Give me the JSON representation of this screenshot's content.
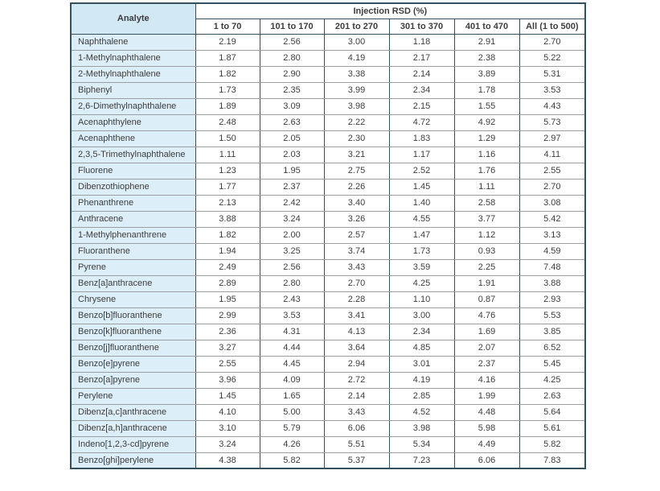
{
  "table": {
    "span_header": "Injection RSD (%)",
    "analyte_header": "Analyte",
    "range_headers": [
      "1 to 70",
      "101 to 170",
      "201 to 270",
      "301 to 370",
      "401 to 470",
      "All (1 to 500)"
    ],
    "rows": [
      {
        "analyte": "Naphthalene",
        "values": [
          "2.19",
          "2.56",
          "3.00",
          "1.18",
          "2.91",
          "2.70"
        ]
      },
      {
        "analyte": "1-Methylnaphthalene",
        "values": [
          "1.87",
          "2.80",
          "4.19",
          "2.17",
          "2.38",
          "5.22"
        ]
      },
      {
        "analyte": "2-Methylnaphthalene",
        "values": [
          "1.82",
          "2.90",
          "3.38",
          "2.14",
          "3.89",
          "5.31"
        ]
      },
      {
        "analyte": "Biphenyl",
        "values": [
          "1.73",
          "2.35",
          "3.99",
          "2.34",
          "1.78",
          "3.53"
        ]
      },
      {
        "analyte": "2,6-Dimethylnaphthalene",
        "values": [
          "1.89",
          "3.09",
          "3.98",
          "2.15",
          "1.55",
          "4.43"
        ]
      },
      {
        "analyte": "Acenaphthylene",
        "values": [
          "2.48",
          "2.63",
          "2.22",
          "4.72",
          "4.92",
          "5.73"
        ]
      },
      {
        "analyte": "Acenaphthene",
        "values": [
          "1.50",
          "2.05",
          "2.30",
          "1.83",
          "1.29",
          "2.97"
        ]
      },
      {
        "analyte": "2,3,5-Trimethylnaphthalene",
        "values": [
          "1.11",
          "2.03",
          "3.21",
          "1.17",
          "1.16",
          "4.11"
        ]
      },
      {
        "analyte": "Fluorene",
        "values": [
          "1.23",
          "1.95",
          "2.75",
          "2.52",
          "1.76",
          "2.55"
        ]
      },
      {
        "analyte": "Dibenzothiophene",
        "values": [
          "1.77",
          "2.37",
          "2.26",
          "1.45",
          "1.11",
          "2.70"
        ]
      },
      {
        "analyte": "Phenanthrene",
        "values": [
          "2.13",
          "2.42",
          "3.40",
          "1.40",
          "2.58",
          "3.08"
        ]
      },
      {
        "analyte": "Anthracene",
        "values": [
          "3.88",
          "3.24",
          "3.26",
          "4.55",
          "3.77",
          "5.42"
        ]
      },
      {
        "analyte": "1-Methylphenanthrene",
        "values": [
          "1.82",
          "2.00",
          "2.57",
          "1.47",
          "1.12",
          "3.13"
        ]
      },
      {
        "analyte": "Fluoranthene",
        "values": [
          "1.94",
          "3.25",
          "3.74",
          "1.73",
          "0.93",
          "4.59"
        ]
      },
      {
        "analyte": "Pyrene",
        "values": [
          "2.49",
          "2.56",
          "3.43",
          "3.59",
          "2.25",
          "7.48"
        ]
      },
      {
        "analyte": "Benz[a]anthracene",
        "values": [
          "2.89",
          "2.80",
          "2.70",
          "4.25",
          "1.91",
          "3.88"
        ]
      },
      {
        "analyte": "Chrysene",
        "values": [
          "1.95",
          "2.43",
          "2.28",
          "1.10",
          "0.87",
          "2.93"
        ]
      },
      {
        "analyte": "Benzo[b]fluoranthene",
        "values": [
          "2.99",
          "3.53",
          "3.41",
          "3.00",
          "4.76",
          "5.53"
        ]
      },
      {
        "analyte": "Benzo[k]fluoranthene",
        "values": [
          "2.36",
          "4.31",
          "4.13",
          "2.34",
          "1.69",
          "3.85"
        ]
      },
      {
        "analyte": "Benzo[j]fluoranthene",
        "values": [
          "3.27",
          "4.44",
          "3.64",
          "4.85",
          "2.07",
          "6.52"
        ]
      },
      {
        "analyte": "Benzo[e]pyrene",
        "values": [
          "2.55",
          "4.45",
          "2.94",
          "3.01",
          "2.37",
          "5.45"
        ]
      },
      {
        "analyte": "Benzo[a]pyrene",
        "values": [
          "3.96",
          "4.09",
          "2.72",
          "4.19",
          "4.16",
          "4.25"
        ]
      },
      {
        "analyte": "Perylene",
        "values": [
          "1.45",
          "1.65",
          "2.14",
          "2.85",
          "1.99",
          "2.63"
        ]
      },
      {
        "analyte": "Dibenz[a,c]anthracene",
        "values": [
          "4.10",
          "5.00",
          "3.43",
          "4.52",
          "4.48",
          "5.64"
        ]
      },
      {
        "analyte": "Dibenz[a,h]anthracene",
        "values": [
          "3.10",
          "5.79",
          "6.06",
          "3.98",
          "5.98",
          "5.61"
        ]
      },
      {
        "analyte": "Indeno[1,2,3-cd]pyrene",
        "values": [
          "3.24",
          "4.26",
          "5.51",
          "5.34",
          "4.49",
          "5.82"
        ]
      },
      {
        "analyte": "Benzo[ghi]perylene",
        "values": [
          "4.38",
          "5.82",
          "5.37",
          "7.23",
          "6.06",
          "7.83"
        ]
      }
    ]
  },
  "colors": {
    "analyte_cell_bg": "#dceef8",
    "analyte_header_bg": "#d2e8f4",
    "dark_border": "#33505c",
    "row_separator": "#9b9fa3",
    "text": "#3d3d3d"
  }
}
